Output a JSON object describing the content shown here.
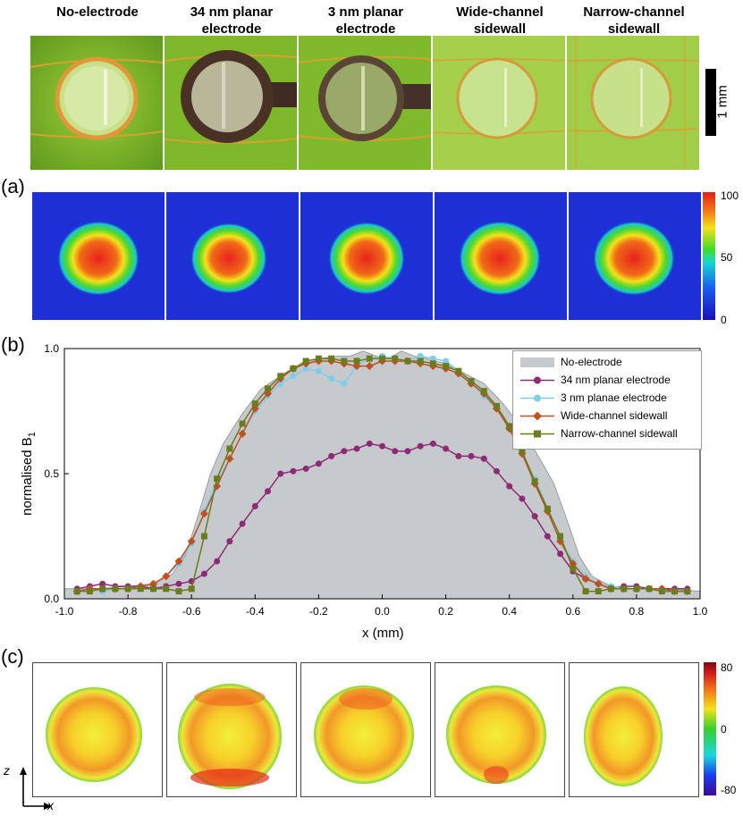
{
  "figure": {
    "columns": [
      "No-electrode",
      "34 nm planar\nelectrode",
      "3 nm planar\nelectrode",
      "Wide-channel\nsidewall",
      "Narrow-channel\nsidewall"
    ],
    "scale_bar_label": "1 mm",
    "panel_labels": {
      "a": "(a)",
      "b": "(b)",
      "c": "(c)"
    },
    "colorbar_a": {
      "ticks": [
        "100",
        "50",
        "0"
      ]
    },
    "colorbar_c": {
      "ticks": [
        "80",
        "0",
        "-80"
      ]
    },
    "axis_indicator": {
      "z": "z",
      "x": "x"
    }
  },
  "colors": {
    "no_electrode": "#c7cacc",
    "planar34": "#8e2a78",
    "planar3": "#7fcdea",
    "wide": "#c0501f",
    "narrow": "#6b7b1e"
  },
  "chart_data": {
    "type": "line",
    "title": "",
    "xlabel": "x (mm)",
    "ylabel": "normalised B",
    "ylabel_sub": "1",
    "xlim": [
      -1.0,
      1.0
    ],
    "ylim": [
      0.0,
      1.0
    ],
    "xticks": [
      "-1.0",
      "-0.8",
      "-0.6",
      "-0.4",
      "-0.2",
      "0.0",
      "0.2",
      "0.4",
      "0.6",
      "0.8",
      "1.0"
    ],
    "yticks": [
      "0.0",
      "0.5",
      "1.0"
    ],
    "legend_position": "top-right",
    "series": [
      {
        "name": "No-electrode",
        "style": "area",
        "x": [
          -1.0,
          -0.9,
          -0.8,
          -0.72,
          -0.66,
          -0.62,
          -0.58,
          -0.54,
          -0.5,
          -0.44,
          -0.38,
          -0.32,
          -0.26,
          -0.2,
          -0.14,
          -0.1,
          -0.06,
          -0.02,
          0.02,
          0.06,
          0.1,
          0.14,
          0.2,
          0.26,
          0.32,
          0.38,
          0.44,
          0.5,
          0.54,
          0.58,
          0.62,
          0.66,
          0.72,
          0.8,
          0.9,
          1.0
        ],
        "y": [
          0.04,
          0.04,
          0.05,
          0.06,
          0.1,
          0.17,
          0.33,
          0.5,
          0.62,
          0.74,
          0.84,
          0.89,
          0.93,
          0.96,
          0.97,
          0.97,
          0.99,
          0.97,
          0.96,
          0.99,
          0.97,
          0.96,
          0.94,
          0.9,
          0.86,
          0.78,
          0.68,
          0.55,
          0.46,
          0.32,
          0.17,
          0.09,
          0.05,
          0.04,
          0.04,
          0.03
        ]
      },
      {
        "name": "34 nm planar electrode",
        "marker": "circle",
        "x": [
          -0.96,
          -0.92,
          -0.88,
          -0.84,
          -0.8,
          -0.76,
          -0.72,
          -0.68,
          -0.64,
          -0.6,
          -0.56,
          -0.52,
          -0.48,
          -0.44,
          -0.4,
          -0.36,
          -0.32,
          -0.28,
          -0.24,
          -0.2,
          -0.16,
          -0.12,
          -0.08,
          -0.04,
          0.0,
          0.04,
          0.08,
          0.12,
          0.16,
          0.2,
          0.24,
          0.28,
          0.32,
          0.36,
          0.4,
          0.44,
          0.48,
          0.52,
          0.56,
          0.6,
          0.64,
          0.68,
          0.72,
          0.76,
          0.8,
          0.84,
          0.88,
          0.92,
          0.96
        ],
        "y": [
          0.04,
          0.05,
          0.06,
          0.05,
          0.05,
          0.05,
          0.04,
          0.05,
          0.06,
          0.07,
          0.1,
          0.15,
          0.23,
          0.3,
          0.37,
          0.43,
          0.5,
          0.51,
          0.52,
          0.54,
          0.57,
          0.59,
          0.6,
          0.62,
          0.61,
          0.59,
          0.59,
          0.61,
          0.62,
          0.6,
          0.57,
          0.57,
          0.56,
          0.51,
          0.45,
          0.4,
          0.33,
          0.25,
          0.18,
          0.11,
          0.08,
          0.06,
          0.04,
          0.05,
          0.05,
          0.04,
          0.04,
          0.04,
          0.04
        ]
      },
      {
        "name": "3 nm planae electrode",
        "marker": "circle",
        "x": [
          -0.96,
          -0.92,
          -0.88,
          -0.84,
          -0.8,
          -0.76,
          -0.72,
          -0.68,
          -0.64,
          -0.6,
          -0.56,
          -0.52,
          -0.48,
          -0.44,
          -0.4,
          -0.36,
          -0.32,
          -0.28,
          -0.24,
          -0.2,
          -0.16,
          -0.12,
          -0.08,
          -0.04,
          0.0,
          0.04,
          0.08,
          0.12,
          0.16,
          0.2,
          0.24,
          0.28,
          0.32,
          0.36,
          0.4,
          0.44,
          0.48,
          0.52,
          0.56,
          0.6,
          0.64,
          0.68,
          0.72,
          0.76,
          0.8,
          0.84,
          0.88,
          0.92,
          0.96
        ],
        "y": [
          0.03,
          0.04,
          0.03,
          0.04,
          0.04,
          0.05,
          0.06,
          0.09,
          0.14,
          0.22,
          0.35,
          0.47,
          0.56,
          0.66,
          0.75,
          0.81,
          0.86,
          0.89,
          0.92,
          0.91,
          0.88,
          0.86,
          0.93,
          0.96,
          0.97,
          0.96,
          0.95,
          0.97,
          0.96,
          0.95,
          0.91,
          0.86,
          0.81,
          0.76,
          0.68,
          0.58,
          0.48,
          0.36,
          0.24,
          0.15,
          0.09,
          0.06,
          0.05,
          0.04,
          0.04,
          0.04,
          0.03,
          0.03,
          0.03
        ]
      },
      {
        "name": "Wide-channel sidewall",
        "marker": "diamond",
        "x": [
          -0.96,
          -0.92,
          -0.88,
          -0.84,
          -0.8,
          -0.76,
          -0.72,
          -0.68,
          -0.64,
          -0.6,
          -0.56,
          -0.52,
          -0.48,
          -0.44,
          -0.4,
          -0.36,
          -0.32,
          -0.28,
          -0.24,
          -0.2,
          -0.16,
          -0.12,
          -0.08,
          -0.04,
          0.0,
          0.04,
          0.08,
          0.12,
          0.16,
          0.2,
          0.24,
          0.28,
          0.32,
          0.36,
          0.4,
          0.44,
          0.48,
          0.52,
          0.56,
          0.6,
          0.64,
          0.68,
          0.72,
          0.76,
          0.8,
          0.84,
          0.88,
          0.92,
          0.96
        ],
        "y": [
          0.03,
          0.04,
          0.04,
          0.04,
          0.04,
          0.05,
          0.06,
          0.09,
          0.15,
          0.23,
          0.34,
          0.45,
          0.56,
          0.66,
          0.76,
          0.82,
          0.88,
          0.92,
          0.94,
          0.95,
          0.95,
          0.94,
          0.93,
          0.93,
          0.95,
          0.95,
          0.95,
          0.94,
          0.93,
          0.92,
          0.9,
          0.86,
          0.82,
          0.76,
          0.68,
          0.58,
          0.46,
          0.35,
          0.23,
          0.14,
          0.08,
          0.06,
          0.04,
          0.04,
          0.04,
          0.04,
          0.04,
          0.03,
          0.03
        ]
      },
      {
        "name": "Narrow-channel sidewall",
        "marker": "square",
        "x": [
          -0.96,
          -0.92,
          -0.88,
          -0.84,
          -0.8,
          -0.76,
          -0.72,
          -0.68,
          -0.64,
          -0.6,
          -0.56,
          -0.52,
          -0.48,
          -0.44,
          -0.4,
          -0.36,
          -0.32,
          -0.28,
          -0.24,
          -0.2,
          -0.16,
          -0.12,
          -0.08,
          -0.04,
          0.0,
          0.04,
          0.08,
          0.12,
          0.16,
          0.2,
          0.24,
          0.28,
          0.32,
          0.36,
          0.4,
          0.44,
          0.48,
          0.52,
          0.56,
          0.6,
          0.64,
          0.68,
          0.72,
          0.76,
          0.8,
          0.84,
          0.88,
          0.92,
          0.96
        ],
        "y": [
          0.03,
          0.03,
          0.04,
          0.04,
          0.04,
          0.04,
          0.04,
          0.04,
          0.03,
          0.04,
          0.25,
          0.48,
          0.6,
          0.7,
          0.78,
          0.84,
          0.89,
          0.92,
          0.95,
          0.96,
          0.96,
          0.95,
          0.95,
          0.96,
          0.96,
          0.96,
          0.95,
          0.95,
          0.94,
          0.93,
          0.91,
          0.87,
          0.83,
          0.77,
          0.69,
          0.59,
          0.47,
          0.36,
          0.25,
          0.12,
          0.03,
          0.03,
          0.04,
          0.04,
          0.04,
          0.04,
          0.03,
          0.03,
          0.03
        ]
      }
    ]
  }
}
